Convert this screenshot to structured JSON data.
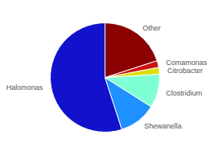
{
  "chart_data": {
    "type": "pie",
    "categories": [
      "Halomonas",
      "Shewanella",
      "Clostridium",
      "Citrobacter",
      "Comamonas",
      "Other"
    ],
    "values": [
      55,
      11,
      10,
      2,
      2,
      20
    ],
    "colors": [
      "#1212cc",
      "#1e90ff",
      "#7fffd4",
      "#dddd00",
      "#cc1111",
      "#8b0000"
    ]
  }
}
